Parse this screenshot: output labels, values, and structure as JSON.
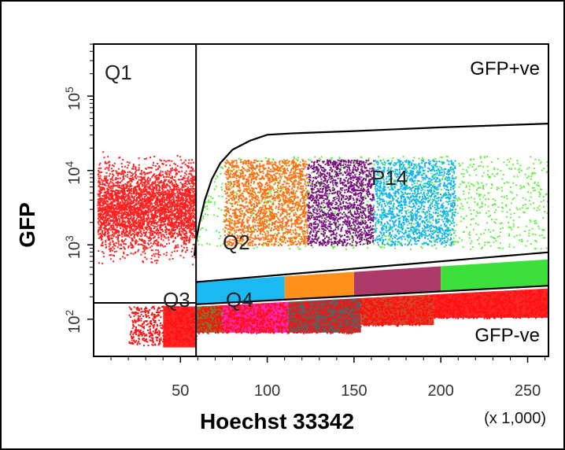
{
  "chart_data": {
    "type": "scatter",
    "xlabel": "Hoechst 33342",
    "ylabel": "GFP",
    "x_multiplier_label": "(x 1,000)",
    "xlim": [
      0,
      262
    ],
    "ylim_log10": [
      1.5,
      5.7
    ],
    "x_ticks": [
      50,
      100,
      150,
      200,
      250
    ],
    "x_tick_labels": [
      "50",
      "100",
      "150",
      "200",
      "250"
    ],
    "y_ticks": [
      {
        "value": 100,
        "base": "10",
        "exp": "2"
      },
      {
        "value": 1000,
        "base": "10",
        "exp": "3"
      },
      {
        "value": 10000,
        "base": "10",
        "exp": "4"
      },
      {
        "value": 100000,
        "base": "10",
        "exp": "5"
      }
    ],
    "annotations": {
      "gfp_pos": "GFP+ve",
      "gfp_neg": "GFP-ve",
      "q1": "Q1",
      "q2": "Q2",
      "q3": "Q3",
      "q4": "Q4",
      "p14": "P14"
    },
    "quadrant_divider": {
      "x": 59,
      "y_log10": 2.22
    },
    "populations": [
      {
        "name": "Q1 GFP+ cells",
        "color": "#ff2020",
        "x": [
          0,
          58
        ],
        "y_log10": [
          2.3,
          4.25
        ],
        "count": 3600
      },
      {
        "name": "green gate",
        "color": "#66ee44",
        "x": [
          58,
          262
        ],
        "y_log10": [
          2.95,
          4.25
        ],
        "count": 1300
      },
      {
        "name": "orange gate",
        "color": "#ff7010",
        "x": [
          75,
          123
        ],
        "y_log10": [
          3.0,
          4.15
        ],
        "count": 1900
      },
      {
        "name": "purple gate",
        "color": "#7a1080",
        "x": [
          123,
          161
        ],
        "y_log10": [
          3.0,
          4.15
        ],
        "count": 1500
      },
      {
        "name": "blue gate",
        "color": "#10b4f0",
        "x": [
          161,
          208
        ],
        "y_log10": [
          3.0,
          4.15
        ],
        "count": 1500
      },
      {
        "name": "red negative band",
        "color": "#ff1010",
        "x": [
          20,
          262
        ],
        "y_log10": [
          1.6,
          2.2
        ],
        "count": 3500
      }
    ],
    "low_gfp_bands": [
      {
        "name": "Q3 band",
        "color": "#ff1010",
        "x": [
          40,
          59
        ]
      },
      {
        "name": "olive band",
        "color": "#6b6b18",
        "x": [
          59,
          74
        ]
      },
      {
        "name": "magenta band",
        "color": "#ff10b0",
        "x": [
          74,
          112
        ]
      },
      {
        "name": "gray band",
        "color": "#555555",
        "x": [
          112,
          154
        ]
      },
      {
        "name": "dark red band",
        "color": "#d03010",
        "x": [
          154,
          196
        ]
      },
      {
        "name": "red band",
        "color": "#ff1010",
        "x": [
          196,
          262
        ]
      }
    ],
    "mid_gfp_bands": [
      {
        "name": "cyan",
        "color": "#10b4f0",
        "x": [
          59,
          110
        ]
      },
      {
        "name": "orange",
        "color": "#ff8a10",
        "x": [
          110,
          150
        ]
      },
      {
        "name": "maroon",
        "color": "#a83060",
        "x": [
          150,
          200
        ]
      },
      {
        "name": "green",
        "color": "#33dd33",
        "x": [
          200,
          262
        ]
      }
    ],
    "gate_outline": {
      "x": [
        58,
        59,
        61,
        64,
        68,
        73,
        80,
        90,
        100,
        115,
        150,
        200,
        262
      ],
      "y_log10": [
        2.85,
        3.05,
        3.3,
        3.6,
        3.88,
        4.1,
        4.28,
        4.4,
        4.48,
        4.5,
        4.53,
        4.58,
        4.63
      ]
    },
    "colors": {
      "background": "#ffffff",
      "axis": "#000000"
    }
  }
}
